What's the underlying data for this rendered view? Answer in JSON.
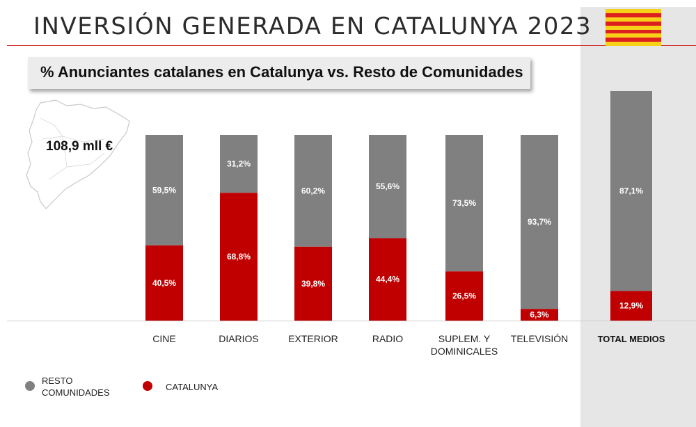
{
  "header": {
    "title": "INVERSIÓN GENERADA EN CATALUNYA 2023",
    "subtitle": "% Anunciantes catalanes en Catalunya vs. Resto de Comunidades",
    "total_amount": "108,9 mll €"
  },
  "colors": {
    "catalunya": "#c00000",
    "resto": "#808080",
    "title_rule": "#d42a2a",
    "total_panel": "#e6e6e6",
    "flag_yellow": "#f7d117",
    "flag_red": "#dd1f1f"
  },
  "legend": {
    "resto_label": "RESTO\nCOMUNIDADES",
    "catalunya_label": "CATALUNYA"
  },
  "chart_data": {
    "type": "bar",
    "stacked": true,
    "percent": true,
    "categories": [
      "CINE",
      "DIARIOS",
      "EXTERIOR",
      "RADIO",
      "SUPLEM. Y\nDOMINICALES",
      "TELEVISIÓN",
      "TOTAL MEDIOS"
    ],
    "series": [
      {
        "name": "CATALUNYA",
        "values": [
          40.5,
          68.8,
          39.8,
          44.4,
          26.5,
          6.3,
          12.9
        ],
        "labels": [
          "40,5%",
          "68,8%",
          "39,8%",
          "44,4%",
          "26,5%",
          "6,3%",
          "12,9%"
        ]
      },
      {
        "name": "RESTO COMUNIDADES",
        "values": [
          59.5,
          31.2,
          60.2,
          55.6,
          73.5,
          93.7,
          87.1
        ],
        "labels": [
          "59,5%",
          "31,2%",
          "60,2%",
          "55,6%",
          "73,5%",
          "93,7%",
          "87,1%"
        ]
      }
    ],
    "ylim": [
      0,
      100
    ],
    "grid": false,
    "legend_position": "bottom-left",
    "highlight_category": "TOTAL MEDIOS"
  }
}
